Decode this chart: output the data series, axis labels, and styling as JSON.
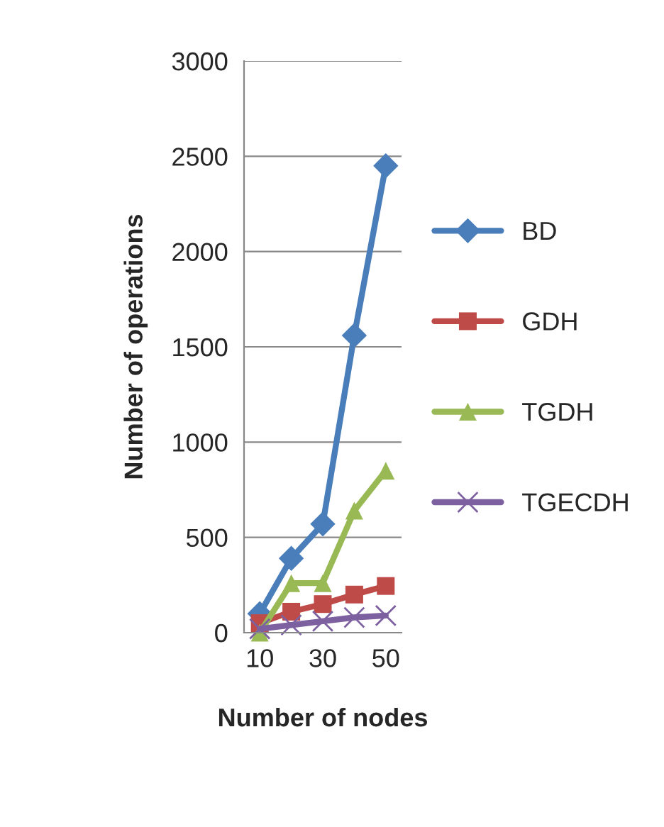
{
  "chart_data": {
    "type": "line",
    "xlabel": "Number of nodes",
    "ylabel": "Number of operations",
    "categories": [
      "10",
      null,
      "30",
      null,
      "50"
    ],
    "series": [
      {
        "name": "BD",
        "color": "#4a7ebb",
        "marker": "diamond",
        "values": [
          100,
          390,
          570,
          1560,
          2450
        ]
      },
      {
        "name": "GDH",
        "color": "#be4b48",
        "marker": "square",
        "values": [
          50,
          110,
          150,
          200,
          245
        ]
      },
      {
        "name": "TGDH",
        "color": "#98b954",
        "marker": "triangle",
        "values": [
          0,
          260,
          260,
          640,
          850
        ]
      },
      {
        "name": "TGECDH",
        "color": "#7d60a0",
        "marker": "cross",
        "values": [
          20,
          40,
          60,
          80,
          90
        ]
      }
    ],
    "ylim": [
      0,
      3000
    ],
    "yticks": [
      0,
      500,
      1000,
      1500,
      2000,
      2500,
      3000
    ],
    "grid": "y",
    "legend": "right"
  }
}
